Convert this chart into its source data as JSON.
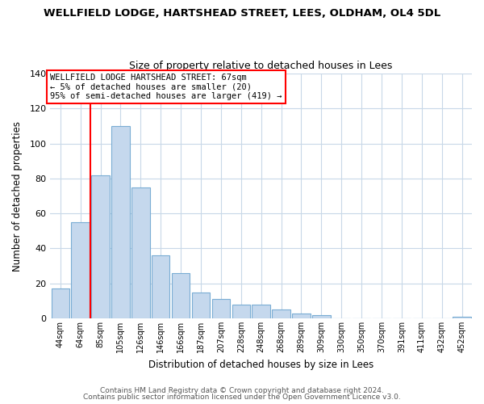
{
  "title": "WELLFIELD LODGE, HARTSHEAD STREET, LEES, OLDHAM, OL4 5DL",
  "subtitle": "Size of property relative to detached houses in Lees",
  "xlabel": "Distribution of detached houses by size in Lees",
  "ylabel": "Number of detached properties",
  "bar_color": "#c5d8ed",
  "bar_edge_color": "#7aadd4",
  "categories": [
    "44sqm",
    "64sqm",
    "85sqm",
    "105sqm",
    "126sqm",
    "146sqm",
    "166sqm",
    "187sqm",
    "207sqm",
    "228sqm",
    "248sqm",
    "268sqm",
    "289sqm",
    "309sqm",
    "330sqm",
    "350sqm",
    "370sqm",
    "391sqm",
    "411sqm",
    "432sqm",
    "452sqm"
  ],
  "values": [
    17,
    55,
    82,
    110,
    75,
    36,
    26,
    15,
    11,
    8,
    8,
    5,
    3,
    2,
    0,
    0,
    0,
    0,
    0,
    0,
    1
  ],
  "ylim": [
    0,
    140
  ],
  "yticks": [
    0,
    20,
    40,
    60,
    80,
    100,
    120,
    140
  ],
  "red_line_x": 1.5,
  "annotation_title": "WELLFIELD LODGE HARTSHEAD STREET: 67sqm",
  "annotation_line1": "← 5% of detached houses are smaller (20)",
  "annotation_line2": "95% of semi-detached houses are larger (419) →",
  "footer1": "Contains HM Land Registry data © Crown copyright and database right 2024.",
  "footer2": "Contains public sector information licensed under the Open Government Licence v3.0.",
  "background_color": "#ffffff"
}
